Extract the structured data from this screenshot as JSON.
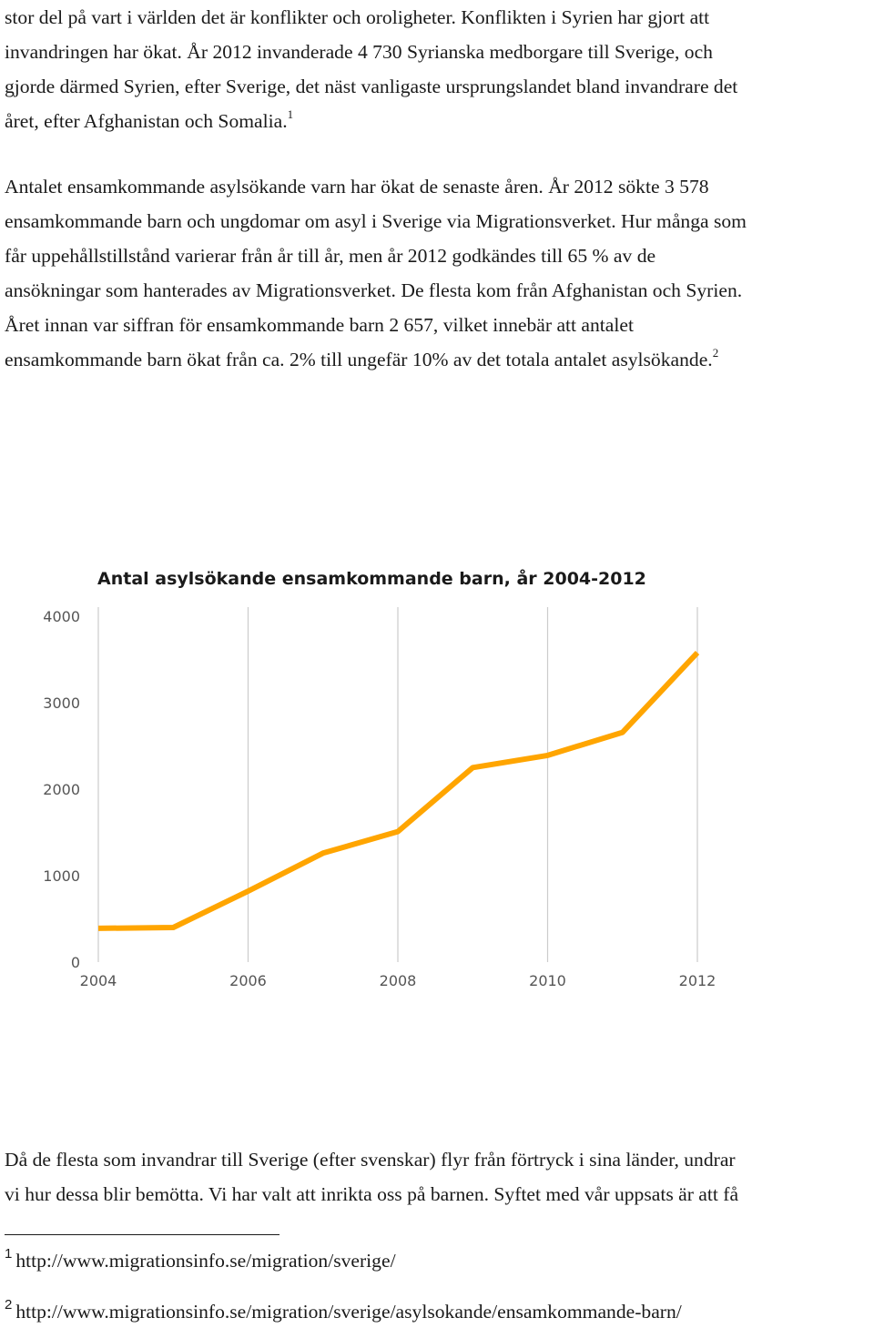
{
  "paragraphs": {
    "p1": "stor del på vart i världen det är konflikter och oroligheter. Konflikten i Syrien har gjort att\ninvandringen har ökat. År 2012 invanderade 4 730 Syrianska medborgare till Sverige, och\ngjorde därmed Syrien, efter Sverige, det näst vanligaste ursprungslandet bland invandrare det\nåret, efter Afghanistan och Somalia.",
    "p1_ref": "1",
    "p2": "Antalet ensamkommande asylsökande varn har ökat de senaste åren. År 2012 sökte 3 578\nensamkommande barn och ungdomar om asyl i Sverige via Migrationsverket. Hur många som\nfår uppehållstillstånd varierar från år till år, men år 2012 godkändes till 65 % av de\nansökningar som hanterades av Migrationsverket. De flesta kom från Afghanistan och Syrien.\nÅret innan var siffran för ensamkommande barn 2 657, vilket innebär att antalet\nensamkommande barn ökat från ca. 2% till ungefär 10% av det totala antalet asylsökande.",
    "p2_ref": "2",
    "p3": "Då de flesta som invandrar till Sverige (efter svenskar) flyr från förtryck i sina länder, undrar\nvi hur dessa blir bemötta. Vi har valt att inrikta oss på barnen. Syftet med vår uppsats är att få"
  },
  "footnotes": [
    {
      "number": "1",
      "text": "http://www.migrationsinfo.se/migration/sverige/"
    },
    {
      "number": "2",
      "text": "http://www.migrationsinfo.se/migration/sverige/asylsokande/ensamkommande-barn/"
    }
  ],
  "chart_data": {
    "type": "line",
    "title": "Antal asylsökande ensamkommande barn, år 2004-2012",
    "xlabel": "",
    "ylabel": "",
    "x": [
      2004,
      2005,
      2006,
      2007,
      2008,
      2009,
      2010,
      2011,
      2012
    ],
    "series": [
      {
        "values": [
          390,
          400,
          820,
          1260,
          1510,
          2250,
          2390,
          2657,
          3578
        ]
      }
    ],
    "x_ticks": [
      "2004",
      "2006",
      "2008",
      "2010",
      "2012"
    ],
    "y_ticks": [
      "0",
      "1000",
      "2000",
      "3000",
      "4000"
    ],
    "xlim": [
      2004,
      2012
    ],
    "ylim": [
      0,
      4000
    ],
    "grid": "vertical",
    "legend": "none",
    "line_color": "#FFA500",
    "grid_color": "#cccccc"
  }
}
